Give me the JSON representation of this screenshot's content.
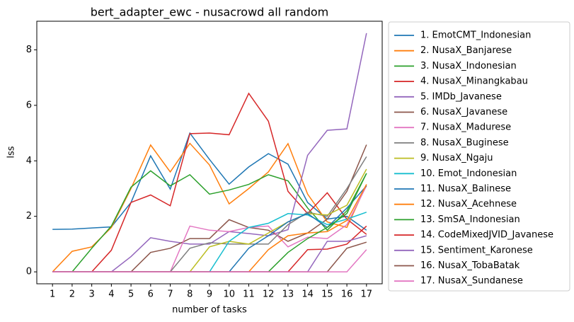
{
  "chart_data": {
    "type": "line",
    "title": "bert_adapter_ewc - nusacrowd all random",
    "xlabel": "number of tasks",
    "ylabel": "lss",
    "x": [
      1,
      2,
      3,
      4,
      5,
      6,
      7,
      8,
      9,
      10,
      11,
      12,
      13,
      14,
      15,
      16,
      17
    ],
    "xlim": [
      0.2,
      17.8
    ],
    "xticks": [
      1,
      2,
      3,
      4,
      5,
      6,
      7,
      8,
      9,
      10,
      11,
      12,
      13,
      14,
      15,
      16,
      17
    ],
    "ylim": [
      -0.43,
      9.03
    ],
    "yticks": [
      0,
      2,
      4,
      6,
      8
    ],
    "legend": "outside right",
    "series": [
      {
        "name": "1. EmotCMT_Indonesian",
        "color": "#1f77b4",
        "values": [
          1.53,
          1.54,
          1.58,
          1.62,
          2.5,
          4.18,
          2.98,
          5.0,
          4.05,
          3.16,
          3.78,
          4.26,
          3.88,
          2.5,
          1.9,
          2.0,
          1.5
        ]
      },
      {
        "name": "2. NusaX_Banjarese",
        "color": "#ff7f0e",
        "values": [
          0,
          0.74,
          0.9,
          1.6,
          3.0,
          4.57,
          3.6,
          4.63,
          3.85,
          2.45,
          3.0,
          3.6,
          4.62,
          2.8,
          1.8,
          1.6,
          3.15
        ]
      },
      {
        "name": "3. NusaX_Indonesian",
        "color": "#2ca02c",
        "values": [
          0,
          0,
          0.85,
          1.65,
          3.05,
          3.64,
          3.1,
          3.5,
          2.8,
          2.95,
          3.15,
          3.5,
          3.28,
          2.3,
          1.5,
          2.2,
          3.55
        ]
      },
      {
        "name": "4. NusaX_Minangkabau",
        "color": "#d62728",
        "values": [
          0,
          0,
          0,
          0.78,
          2.5,
          2.77,
          2.38,
          4.98,
          5.0,
          4.94,
          6.43,
          5.43,
          2.9,
          2.1,
          2.85,
          1.9,
          1.35
        ]
      },
      {
        "name": "5. IMDb_Javanese",
        "color": "#9467bd",
        "values": [
          0,
          0,
          0,
          0,
          0.55,
          1.23,
          1.1,
          1.0,
          1.0,
          1.45,
          1.38,
          1.3,
          1.52,
          4.2,
          5.1,
          5.15,
          8.6
        ]
      },
      {
        "name": "6. NusaX_Javanese",
        "color": "#8c564b",
        "values": [
          0,
          0,
          0,
          0,
          0,
          0.7,
          0.85,
          1.2,
          1.2,
          1.88,
          1.6,
          1.5,
          1.1,
          1.4,
          1.9,
          2.9,
          4.58
        ]
      },
      {
        "name": "7. NusaX_Madurese",
        "color": "#e377c2",
        "values": [
          0,
          0,
          0,
          0,
          0,
          0,
          0,
          1.65,
          1.5,
          1.45,
          1.6,
          1.65,
          0.9,
          1.25,
          1.2,
          1.7,
          3.1
        ]
      },
      {
        "name": "8. NusaX_Buginese",
        "color": "#7f7f7f",
        "values": [
          0,
          0,
          0,
          0,
          0,
          0,
          0,
          0.85,
          1.05,
          1.0,
          1.0,
          1.0,
          1.7,
          2.15,
          2.0,
          3.0,
          4.15
        ]
      },
      {
        "name": "9. NusaX_Ngaju",
        "color": "#bcbd22",
        "values": [
          0,
          0,
          0,
          0,
          0,
          0,
          0,
          0,
          0.9,
          1.1,
          1.0,
          1.4,
          1.8,
          2.1,
          2.05,
          2.4,
          3.7
        ]
      },
      {
        "name": "10. Emot_Indonesian",
        "color": "#17becf",
        "values": [
          0,
          0,
          0,
          0,
          0,
          0,
          0,
          0,
          0,
          1.1,
          1.6,
          1.75,
          2.1,
          2.05,
          1.7,
          1.9,
          2.15
        ]
      },
      {
        "name": "11. NusaX_Balinese",
        "color": "#1f77b4",
        "values": [
          0,
          0,
          0,
          0,
          0,
          0,
          0,
          0,
          0,
          0,
          0.85,
          1.3,
          1.8,
          2.1,
          1.6,
          2.3,
          3.1
        ]
      },
      {
        "name": "12. NusaX_Acehnese",
        "color": "#ff7f0e",
        "values": [
          0,
          0,
          0,
          0,
          0,
          0,
          0,
          0,
          0,
          0,
          0,
          0.8,
          1.3,
          1.4,
          1.45,
          1.85,
          3.15
        ]
      },
      {
        "name": "13. SmSA_Indonesian",
        "color": "#2ca02c",
        "values": [
          0,
          0,
          0,
          0,
          0,
          0,
          0,
          0,
          0,
          0,
          0,
          0,
          0.7,
          1.2,
          1.6,
          2.1,
          3.55
        ]
      },
      {
        "name": "14. CodeMixedJVID_Javanese",
        "color": "#d62728",
        "values": [
          0,
          0,
          0,
          0,
          0,
          0,
          0,
          0,
          0,
          0,
          0,
          0,
          0,
          0.8,
          0.82,
          1.0,
          1.65
        ]
      },
      {
        "name": "15. Sentiment_Karonese",
        "color": "#9467bd",
        "values": [
          0,
          0,
          0,
          0,
          0,
          0,
          0,
          0,
          0,
          0,
          0,
          0,
          0,
          0,
          1.1,
          1.1,
          1.3
        ]
      },
      {
        "name": "16. NusaX_TobaBatak",
        "color": "#8c564b",
        "values": [
          0,
          0,
          0,
          0,
          0,
          0,
          0,
          0,
          0,
          0,
          0,
          0,
          0,
          0,
          0,
          0.85,
          1.07
        ]
      },
      {
        "name": "17. NusaX_Sundanese",
        "color": "#e377c2",
        "values": [
          0,
          0,
          0,
          0,
          0,
          0,
          0,
          0,
          0,
          0,
          0,
          0,
          0,
          0,
          0,
          0,
          0.8
        ]
      }
    ]
  }
}
